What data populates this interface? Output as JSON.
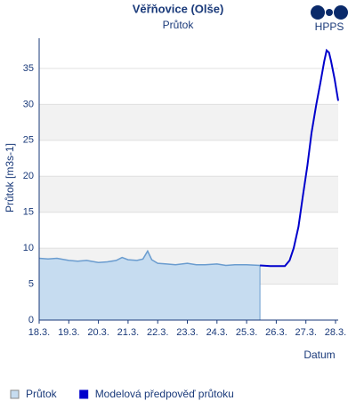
{
  "chart_data": {
    "type": "line",
    "title": "Věřňovice (Olše)",
    "subtitle": "Průtok",
    "logo": "HPPS",
    "y_label": "Průtok [m3s-1]",
    "x_label": "Datum",
    "xlim": [
      18,
      28.09
    ],
    "ylim": [
      0,
      39.2
    ],
    "xticks": [
      {
        "value": 18,
        "label": "18.3."
      },
      {
        "value": 19,
        "label": "19.3."
      },
      {
        "value": 20,
        "label": "20.3."
      },
      {
        "value": 21,
        "label": "21.3."
      },
      {
        "value": 22,
        "label": "22.3."
      },
      {
        "value": 23,
        "label": "23.3."
      },
      {
        "value": 24,
        "label": "24.3."
      },
      {
        "value": 25,
        "label": "25.3."
      },
      {
        "value": 26,
        "label": "26.3."
      },
      {
        "value": 27,
        "label": "27.3."
      },
      {
        "value": 28,
        "label": "28.3."
      }
    ],
    "yticks": [
      0,
      5,
      10,
      15,
      20,
      25,
      30,
      35
    ],
    "series": [
      {
        "name": "Průtok",
        "color": "#c6dcf0",
        "line_color": "#6a9ccf",
        "fill": true,
        "x": [
          18,
          18.3,
          18.6,
          19,
          19.3,
          19.6,
          20,
          20.3,
          20.6,
          20.8,
          21,
          21.3,
          21.5,
          21.66,
          21.8,
          22,
          22.3,
          22.6,
          23,
          23.3,
          23.6,
          24,
          24.3,
          24.6,
          25,
          25.45
        ],
        "values": [
          8.6,
          8.5,
          8.6,
          8.3,
          8.2,
          8.3,
          8.0,
          8.1,
          8.3,
          8.7,
          8.4,
          8.3,
          8.5,
          9.6,
          8.4,
          7.9,
          7.8,
          7.7,
          7.9,
          7.7,
          7.7,
          7.8,
          7.6,
          7.7,
          7.7,
          7.6
        ]
      },
      {
        "name": "Modelová předpověď průtoku",
        "color": "#0000cc",
        "fill": false,
        "x": [
          25.45,
          25.8,
          26.29,
          26.45,
          26.59,
          26.75,
          26.89,
          27.05,
          27.19,
          27.35,
          27.49,
          27.62,
          27.7,
          27.78,
          27.85,
          27.97,
          28.09
        ],
        "values": [
          7.6,
          7.5,
          7.5,
          8.3,
          10,
          13,
          17,
          21.5,
          26,
          30,
          33,
          36,
          37.5,
          37.2,
          36,
          33.5,
          30.5
        ]
      }
    ]
  }
}
